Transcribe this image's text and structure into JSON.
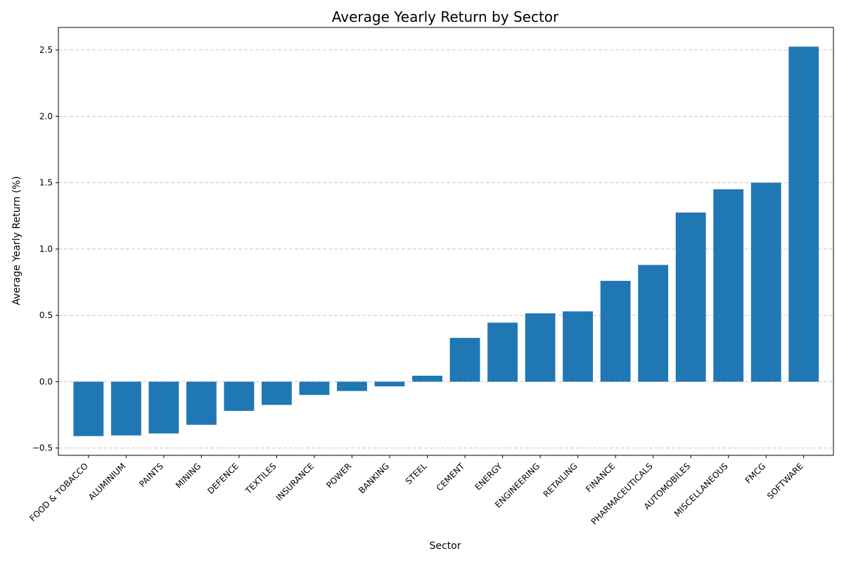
{
  "chart_data": {
    "type": "bar",
    "title": "Average Yearly Return by Sector",
    "xlabel": "Sector",
    "ylabel": "Average Yearly Return (%)",
    "categories": [
      "FOOD & TOBACCO",
      "ALUMINIUM",
      "PAINTS",
      "MINING",
      "DEFENCE",
      "TEXTILES",
      "INSURANCE",
      "POWER",
      "BANKING",
      "STEEL",
      "CEMENT",
      "ENERGY",
      "ENGINEERING",
      "RETAILING",
      "FINANCE",
      "PHARMACEUTICALS",
      "AUTOMOBILES",
      "MISCELLANEOUS",
      "FMCG",
      "SOFTWARE"
    ],
    "values": [
      -0.41,
      -0.405,
      -0.39,
      -0.325,
      -0.22,
      -0.175,
      -0.1,
      -0.07,
      -0.035,
      0.045,
      0.33,
      0.445,
      0.515,
      0.53,
      0.76,
      0.88,
      1.275,
      1.45,
      1.5,
      2.525
    ],
    "ylim": [
      -0.555,
      2.67
    ],
    "yticks": [
      -0.5,
      0.0,
      0.5,
      1.0,
      1.5,
      2.0,
      2.5
    ],
    "ytick_labels": [
      "−0.5",
      "0.0",
      "0.5",
      "1.0",
      "1.5",
      "2.0",
      "2.5"
    ],
    "grid": "y-dashed",
    "bar_color": "#1f77b4",
    "grid_color": "#c8c8c8"
  }
}
